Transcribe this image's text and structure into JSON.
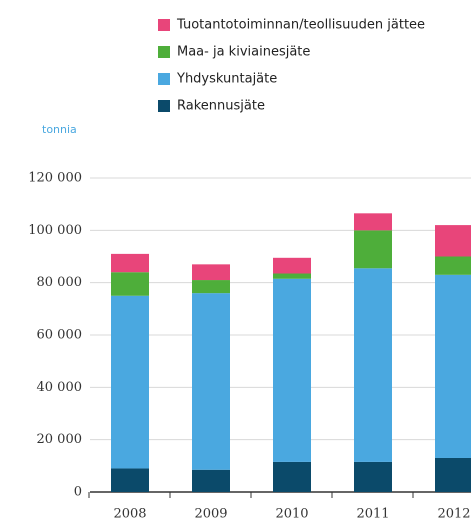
{
  "chart_data": {
    "type": "stacked_bar",
    "y_label": "tonnia",
    "categories": [
      "2008",
      "2009",
      "2010",
      "2011",
      "2012"
    ],
    "series": [
      {
        "name": "Rakennusjäte",
        "color": "#0b4a6a",
        "values": [
          9000,
          8500,
          11500,
          11500,
          13000
        ]
      },
      {
        "name": "Yhdyskuntajäte",
        "color": "#4aa8e0",
        "values": [
          66000,
          67500,
          70000,
          74000,
          70000
        ]
      },
      {
        "name": "Maa- ja kiviainesjäte",
        "color": "#4eae3a",
        "values": [
          9000,
          5000,
          2000,
          14500,
          7000
        ]
      },
      {
        "name": "Tuotantotoiminnan/teollisuuden jättee",
        "color": "#e8457a",
        "values": [
          7000,
          6000,
          6000,
          6500,
          12000
        ]
      }
    ],
    "ylim": [
      0,
      120000
    ],
    "yticks": [
      0,
      {
        "value": 20000,
        "label": "20 000"
      },
      {
        "value": 40000,
        "label": "40 000"
      },
      {
        "value": 60000,
        "label": "60 000"
      },
      {
        "value": 80000,
        "label": "80 000"
      },
      {
        "value": 100000,
        "label": "100 000"
      },
      {
        "value": 120000,
        "label": "120 000"
      }
    ],
    "grid": true
  }
}
